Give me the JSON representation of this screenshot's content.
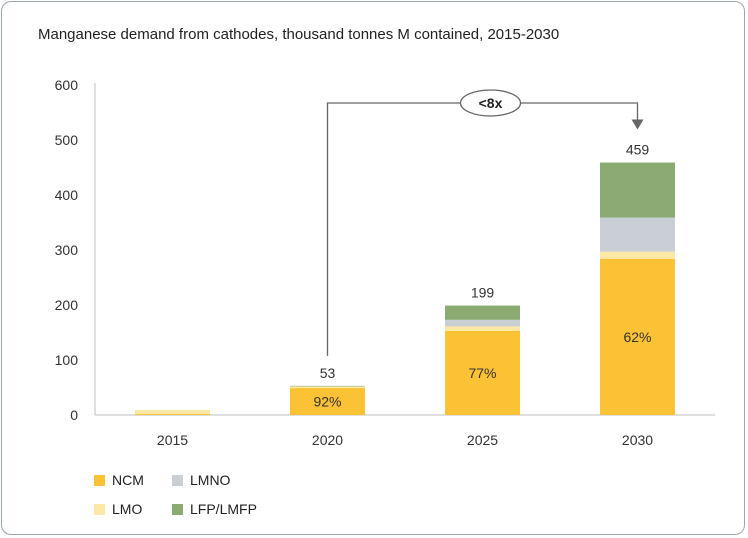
{
  "title": "Manganese demand from cathodes, thousand tonnes M contained, 2015-2030",
  "chart_data": {
    "type": "bar",
    "stacked": true,
    "categories": [
      "2015",
      "2020",
      "2025",
      "2030"
    ],
    "ylim": [
      0,
      600
    ],
    "yticks": [
      "0",
      "100",
      "200",
      "300",
      "400",
      "500",
      "600"
    ],
    "grid": false,
    "legend_position": "bottom-left",
    "series": [
      {
        "name": "NCM",
        "color": "#fcc236",
        "values": [
          2,
          49,
          153,
          284
        ]
      },
      {
        "name": "LMO",
        "color": "#fde9a6",
        "values": [
          7,
          3,
          8,
          13
        ]
      },
      {
        "name": "LMNO",
        "color": "#c9cfd4",
        "values": [
          0,
          0,
          12,
          62
        ]
      },
      {
        "name": "LFP/LMFP",
        "color": "#8bab72",
        "values": [
          0,
          1,
          26,
          100
        ]
      }
    ],
    "totals": [
      "",
      "53",
      "199",
      "459"
    ],
    "share_labels": [
      "",
      "92%",
      "77%",
      "62%"
    ],
    "annotation": {
      "text": "<8x",
      "from": "2020",
      "to": "2030"
    }
  }
}
